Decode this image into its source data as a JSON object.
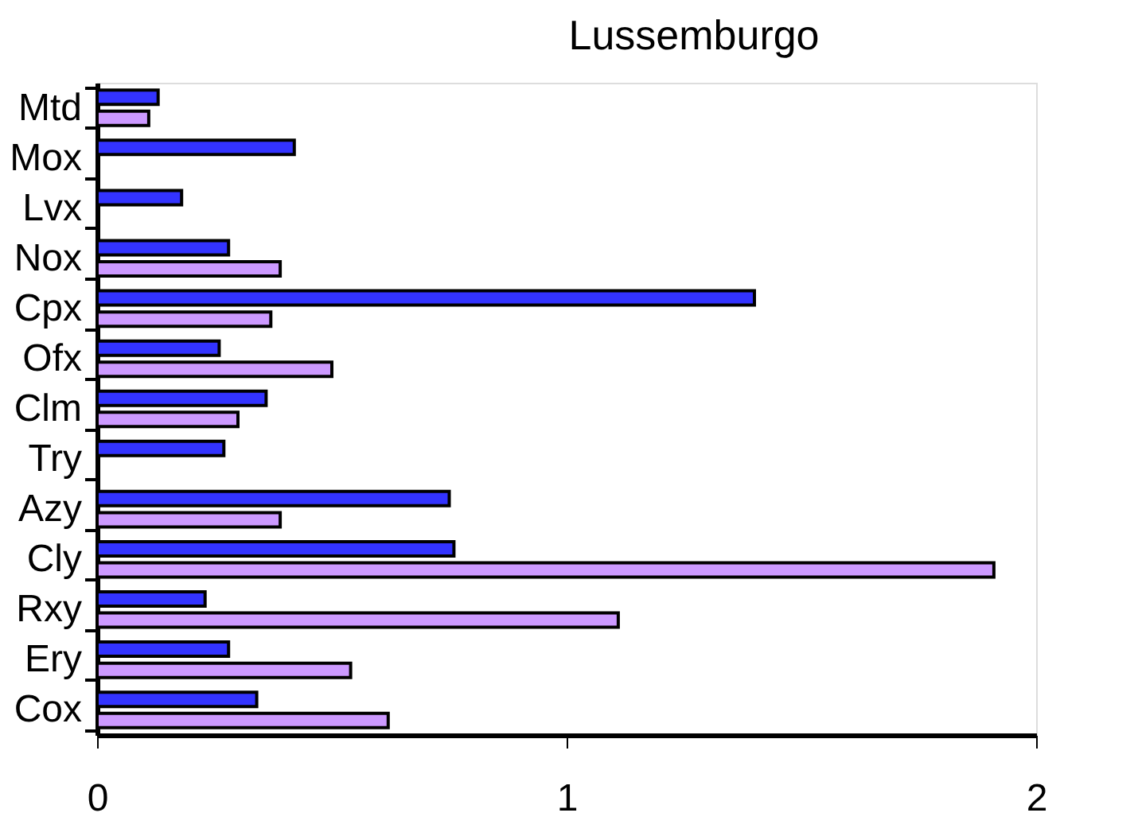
{
  "chart_data": {
    "type": "bar",
    "orientation": "horizontal",
    "title": "Lussemburgo",
    "categories": [
      "Mtd",
      "Mox",
      "Lvx",
      "Nox",
      "Cpx",
      "Ofx",
      "Clm",
      "Try",
      "Azy",
      "Cly",
      "Rxy",
      "Ery",
      "Cox"
    ],
    "series": [
      {
        "color": "#3333ff",
        "values": [
          0.13,
          0.42,
          0.18,
          0.28,
          1.4,
          0.26,
          0.36,
          0.27,
          0.75,
          0.76,
          0.23,
          0.28,
          0.34
        ]
      },
      {
        "color": "#cc99ff",
        "values": [
          0.11,
          null,
          null,
          0.39,
          0.37,
          0.5,
          0.3,
          null,
          0.39,
          1.91,
          1.11,
          0.54,
          0.62
        ]
      }
    ],
    "xlim": [
      0,
      2
    ],
    "xticks": [
      0,
      1,
      2
    ],
    "grid": false,
    "legend": false
  }
}
